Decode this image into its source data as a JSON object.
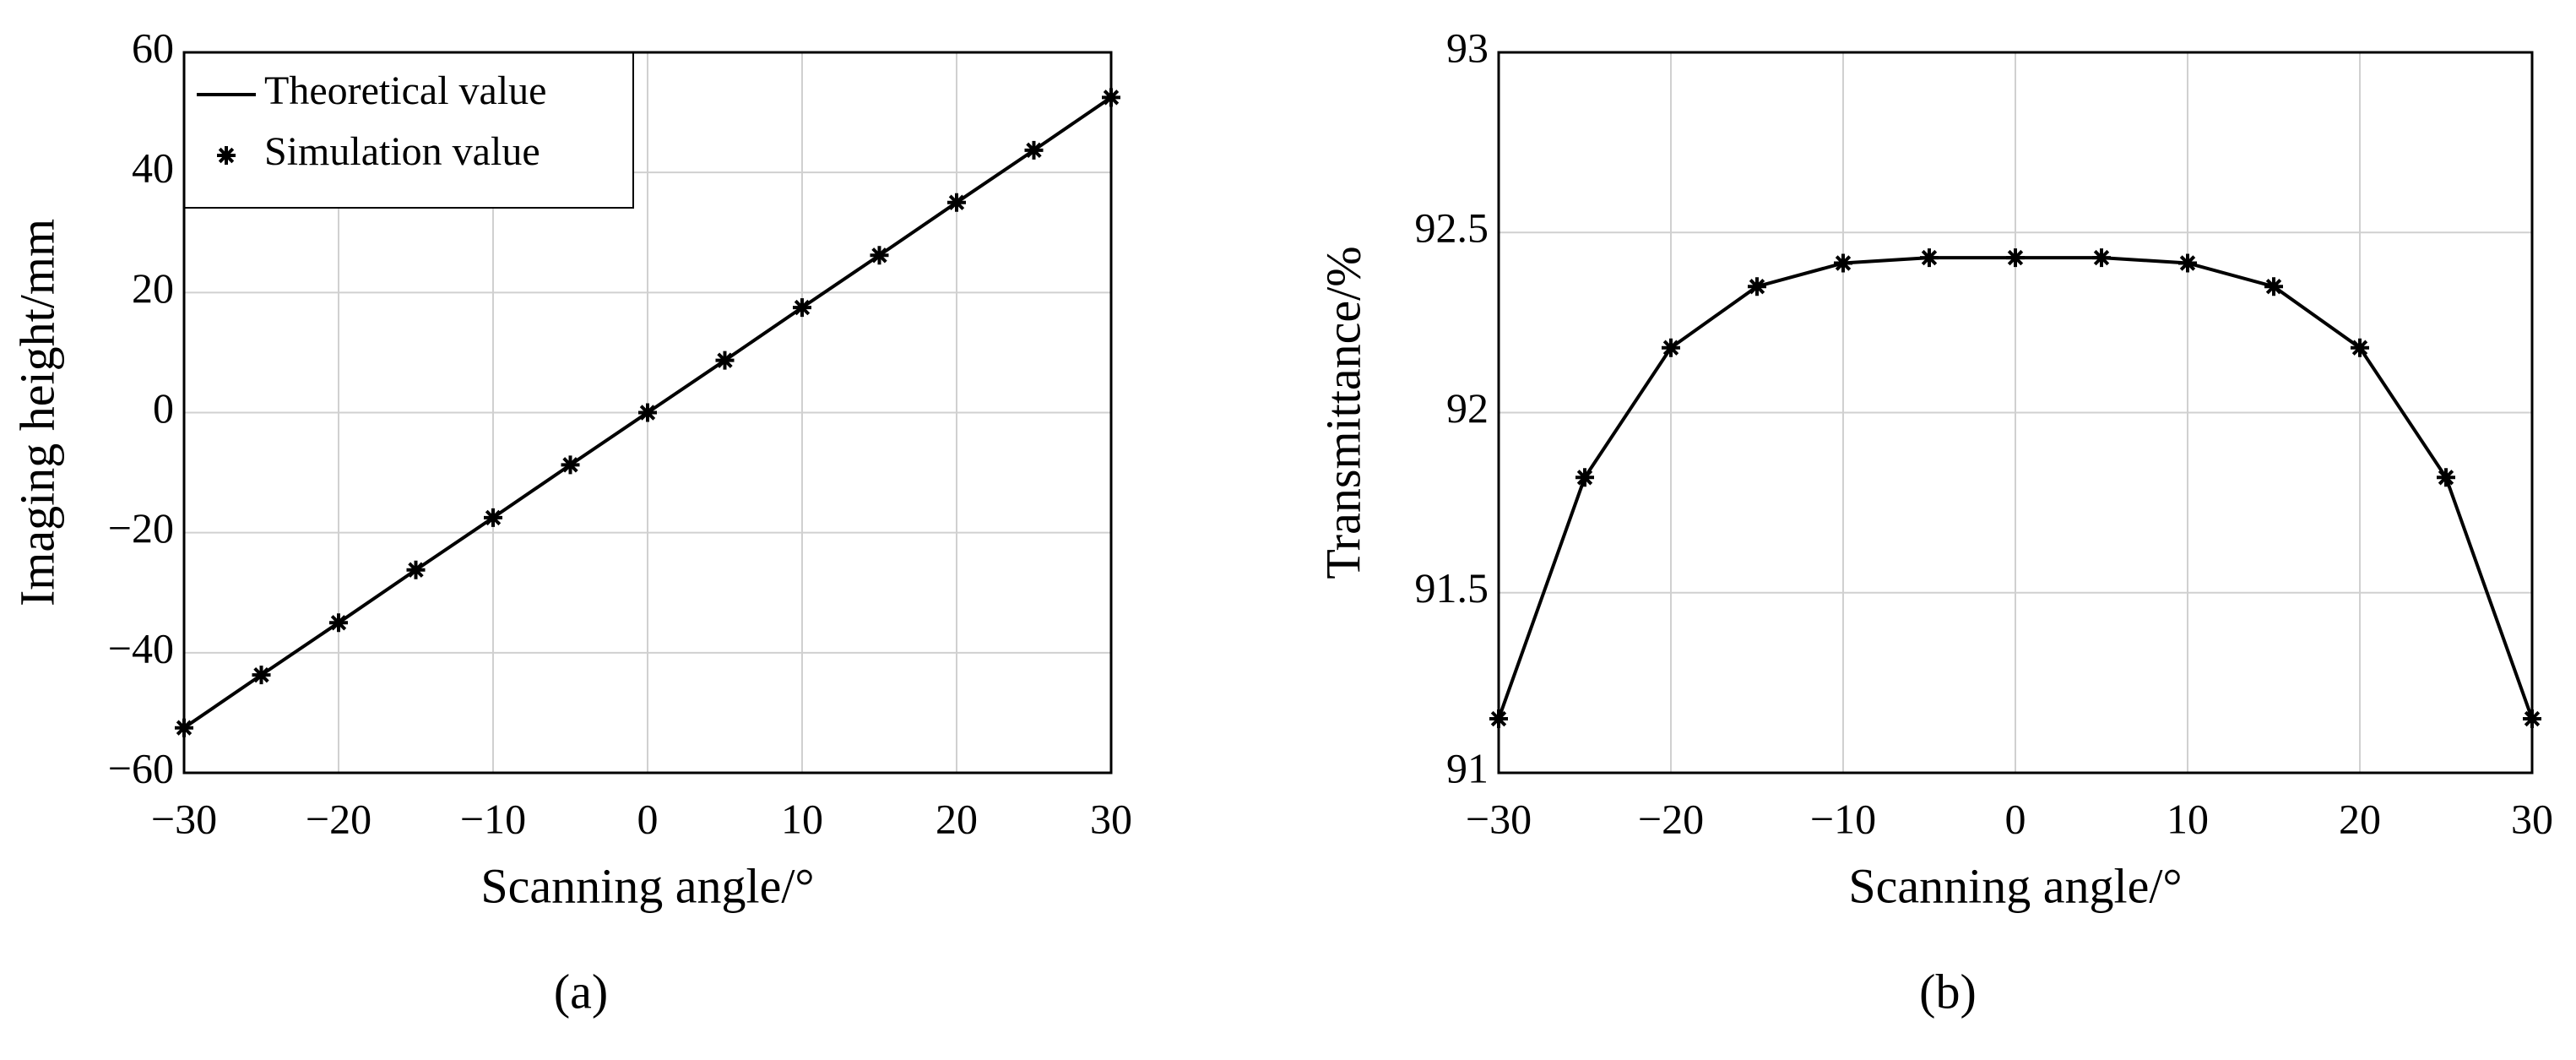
{
  "chart_data": [
    {
      "type": "line",
      "caption": "(a)",
      "x_label": "Scanning angle/°",
      "y_label": "Imaging height/mm",
      "x": [
        -30,
        -25,
        -20,
        -15,
        -10,
        -5,
        0,
        5,
        10,
        15,
        20,
        25,
        30
      ],
      "series": [
        {
          "name": "Theoretical value",
          "color": "#000000",
          "mode": "line",
          "values": [
            -52.5,
            -43.7,
            -35,
            -26.2,
            -17.5,
            -8.7,
            0,
            8.7,
            17.5,
            26.2,
            35,
            43.7,
            52.5
          ]
        },
        {
          "name": "Simulation value",
          "color": "#000000",
          "mode": "markers",
          "values": [
            -52.5,
            -43.7,
            -35,
            -26.2,
            -17.5,
            -8.7,
            0,
            8.7,
            17.5,
            26.2,
            35,
            43.7,
            52.5
          ]
        }
      ],
      "xlim": [
        -30,
        30
      ],
      "xticks": [
        {
          "value": -30,
          "label": "−30"
        },
        {
          "value": -20,
          "label": "−20"
        },
        {
          "value": -10,
          "label": "−10"
        },
        0,
        10,
        20,
        30
      ],
      "ylim": [
        -60,
        60
      ],
      "yticks": [
        {
          "value": -60,
          "label": "−60"
        },
        {
          "value": -40,
          "label": "−40"
        },
        {
          "value": -20,
          "label": "−20"
        },
        0,
        20,
        40,
        60
      ],
      "grid": true,
      "legend": "upper-left"
    },
    {
      "type": "line",
      "caption": "(b)",
      "x_label": "Scanning angle/°",
      "y_label": "Transmittance/%",
      "x": [
        -30,
        -25,
        -20,
        -15,
        -10,
        -5,
        0,
        5,
        10,
        15,
        20,
        25,
        30
      ],
      "series": [
        {
          "color": "#000000",
          "mode": "line+markers",
          "values": [
            91.15,
            91.82,
            92.18,
            92.35,
            92.415,
            92.43,
            92.43,
            92.43,
            92.415,
            92.35,
            92.18,
            91.82,
            91.15
          ]
        }
      ],
      "xlim": [
        -30,
        30
      ],
      "xticks": [
        {
          "value": -30,
          "label": "−30"
        },
        {
          "value": -20,
          "label": "−20"
        },
        {
          "value": -10,
          "label": "−10"
        },
        0,
        10,
        20,
        30
      ],
      "ylim": [
        91,
        93
      ],
      "yticks": [
        91,
        91.5,
        92,
        92.5,
        93
      ],
      "grid": true
    }
  ]
}
